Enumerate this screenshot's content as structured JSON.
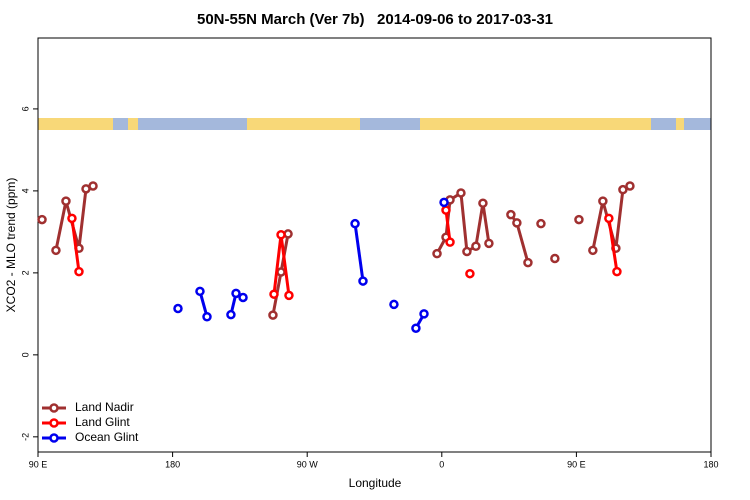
{
  "chart_data": {
    "type": "line",
    "title": "50N-55N March (Ver 7b)   2014-09-06 to 2017-03-31",
    "xlabel": "Longitude",
    "ylabel": "XCO2 - MLO trend (ppm)",
    "xlim": [
      90,
      540
    ],
    "ylim": [
      -2.37,
      7.73
    ],
    "xticks": [
      {
        "value": 90,
        "label": "90 E"
      },
      180,
      {
        "value": 270,
        "label": "90 W"
      },
      {
        "value": 360,
        "label": "0"
      },
      {
        "value": 450,
        "label": "90 E"
      },
      {
        "value": 540,
        "label": "180"
      }
    ],
    "yticks": [
      -2,
      0,
      2,
      4,
      6
    ],
    "legend": "bottom-left",
    "series": [
      {
        "name": "Land Nadir",
        "color": "#a03030",
        "x": [
          92.7,
          null,
          102.0,
          108.7,
          117.4,
          122.1,
          126.8,
          null,
          247.1,
          252.5,
          257.2,
          null,
          356.8,
          362.8,
          365.5,
          372.8,
          376.8,
          382.8,
          387.5,
          391.5,
          null,
          406.2,
          410.2,
          417.6,
          null,
          426.3,
          null,
          435.6,
          null,
          451.7,
          null,
          461.0,
          467.7,
          476.4,
          481.1,
          485.8
        ],
        "values": [
          3.3,
          null,
          2.55,
          3.75,
          2.6,
          4.05,
          4.12,
          null,
          0.97,
          2.02,
          2.95,
          null,
          2.47,
          2.87,
          3.78,
          3.95,
          2.52,
          2.65,
          3.7,
          2.72,
          null,
          3.42,
          3.22,
          2.25,
          null,
          3.2,
          null,
          2.35,
          null,
          3.3,
          null,
          2.55,
          3.75,
          2.6,
          4.03,
          4.12
        ]
      },
      {
        "name": "Land Glint",
        "color": "#ff0000",
        "x": [
          112.7,
          117.4,
          null,
          247.8,
          252.5,
          257.8,
          null,
          362.8,
          365.5,
          null,
          378.8,
          null,
          471.7,
          477.1
        ],
        "values": [
          3.33,
          2.03,
          null,
          1.48,
          2.93,
          1.45,
          null,
          3.53,
          2.75,
          null,
          1.98,
          null,
          3.33,
          2.03
        ]
      },
      {
        "name": "Ocean Glint",
        "color": "#0000ee",
        "x": [
          183.6,
          null,
          198.3,
          203.0,
          null,
          219.0,
          222.4,
          227.1,
          null,
          302.0,
          307.3,
          null,
          328.0,
          null,
          342.7,
          348.1,
          null,
          361.5
        ],
        "values": [
          1.13,
          null,
          1.55,
          0.93,
          null,
          0.98,
          1.5,
          1.4,
          null,
          3.2,
          1.8,
          null,
          1.23,
          null,
          0.65,
          1.0,
          null,
          3.72
        ]
      }
    ]
  }
}
